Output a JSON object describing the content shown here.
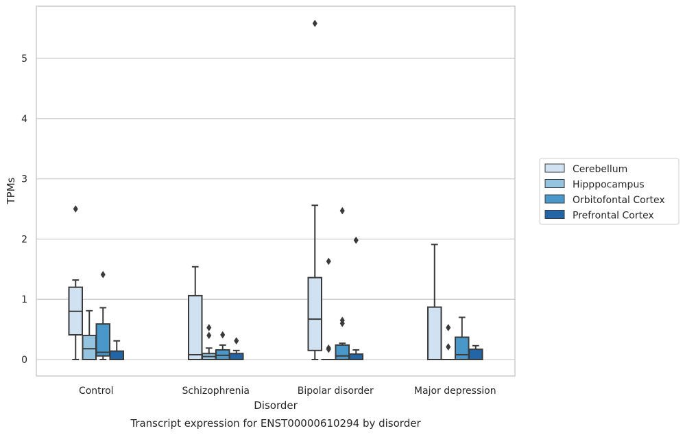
{
  "caption": "Transcript expression for ENST00000610294 by disorder",
  "chart_data": {
    "type": "boxplot",
    "xlabel": "Disorder",
    "ylabel": "TPMs",
    "ylim": [
      -0.27,
      5.87
    ],
    "yticks": [
      0,
      1,
      2,
      3,
      4,
      5
    ],
    "grid": "horizontal",
    "legend_position": "right",
    "categories": [
      "Control",
      "Schizophrenia",
      "Bipolar disorder",
      "Major depression"
    ],
    "series": [
      {
        "name": "Cerebellum",
        "color": "#d0e1f2",
        "boxes": [
          {
            "whislo": 0.0,
            "q1": 0.41,
            "med": 0.8,
            "q3": 1.2,
            "whishi": 1.32,
            "fliers": [
              2.5
            ]
          },
          {
            "whislo": 0.0,
            "q1": 0.0,
            "med": 0.08,
            "q3": 1.06,
            "whishi": 1.54,
            "fliers": []
          },
          {
            "whislo": 0.0,
            "q1": 0.15,
            "med": 0.67,
            "q3": 1.36,
            "whishi": 2.56,
            "fliers": [
              5.58
            ]
          },
          {
            "whislo": 0.0,
            "q1": 0.0,
            "med": 0.0,
            "q3": 0.87,
            "whishi": 1.91,
            "fliers": []
          }
        ]
      },
      {
        "name": "Hipppocampus",
        "color": "#94c4df",
        "boxes": [
          {
            "whislo": 0.0,
            "q1": 0.0,
            "med": 0.18,
            "q3": 0.4,
            "whishi": 0.81,
            "fliers": []
          },
          {
            "whislo": 0.0,
            "q1": 0.0,
            "med": 0.05,
            "q3": 0.1,
            "whishi": 0.19,
            "fliers": [
              0.53,
              0.4
            ]
          },
          {
            "whislo": 0.0,
            "q1": 0.0,
            "med": 0.0,
            "q3": 0.0,
            "whishi": 0.0,
            "fliers": [
              1.63,
              0.19,
              0.17
            ]
          },
          {
            "whislo": 0.0,
            "q1": 0.0,
            "med": 0.0,
            "q3": 0.0,
            "whishi": 0.0,
            "fliers": [
              0.53,
              0.21
            ]
          }
        ]
      },
      {
        "name": "Orbitofontal Cortex",
        "color": "#4a98c9",
        "boxes": [
          {
            "whislo": 0.0,
            "q1": 0.06,
            "med": 0.12,
            "q3": 0.59,
            "whishi": 0.86,
            "fliers": [
              1.41
            ]
          },
          {
            "whislo": 0.0,
            "q1": 0.0,
            "med": 0.07,
            "q3": 0.16,
            "whishi": 0.24,
            "fliers": [
              0.41
            ]
          },
          {
            "whislo": 0.0,
            "q1": 0.0,
            "med": 0.06,
            "q3": 0.24,
            "whishi": 0.27,
            "fliers": [
              2.47,
              0.65,
              0.6
            ]
          },
          {
            "whislo": 0.0,
            "q1": 0.0,
            "med": 0.08,
            "q3": 0.37,
            "whishi": 0.7,
            "fliers": []
          }
        ]
      },
      {
        "name": "Prefrontal Cortex",
        "color": "#2366a8",
        "boxes": [
          {
            "whislo": 0.0,
            "q1": 0.0,
            "med": 0.0,
            "q3": 0.14,
            "whishi": 0.31,
            "fliers": []
          },
          {
            "whislo": 0.0,
            "q1": 0.0,
            "med": 0.0,
            "q3": 0.1,
            "whishi": 0.15,
            "fliers": [
              0.31
            ]
          },
          {
            "whislo": 0.0,
            "q1": 0.0,
            "med": 0.0,
            "q3": 0.09,
            "whishi": 0.16,
            "fliers": [
              1.98
            ]
          },
          {
            "whislo": 0.0,
            "q1": 0.0,
            "med": 0.0,
            "q3": 0.17,
            "whishi": 0.23,
            "fliers": []
          }
        ]
      }
    ]
  }
}
